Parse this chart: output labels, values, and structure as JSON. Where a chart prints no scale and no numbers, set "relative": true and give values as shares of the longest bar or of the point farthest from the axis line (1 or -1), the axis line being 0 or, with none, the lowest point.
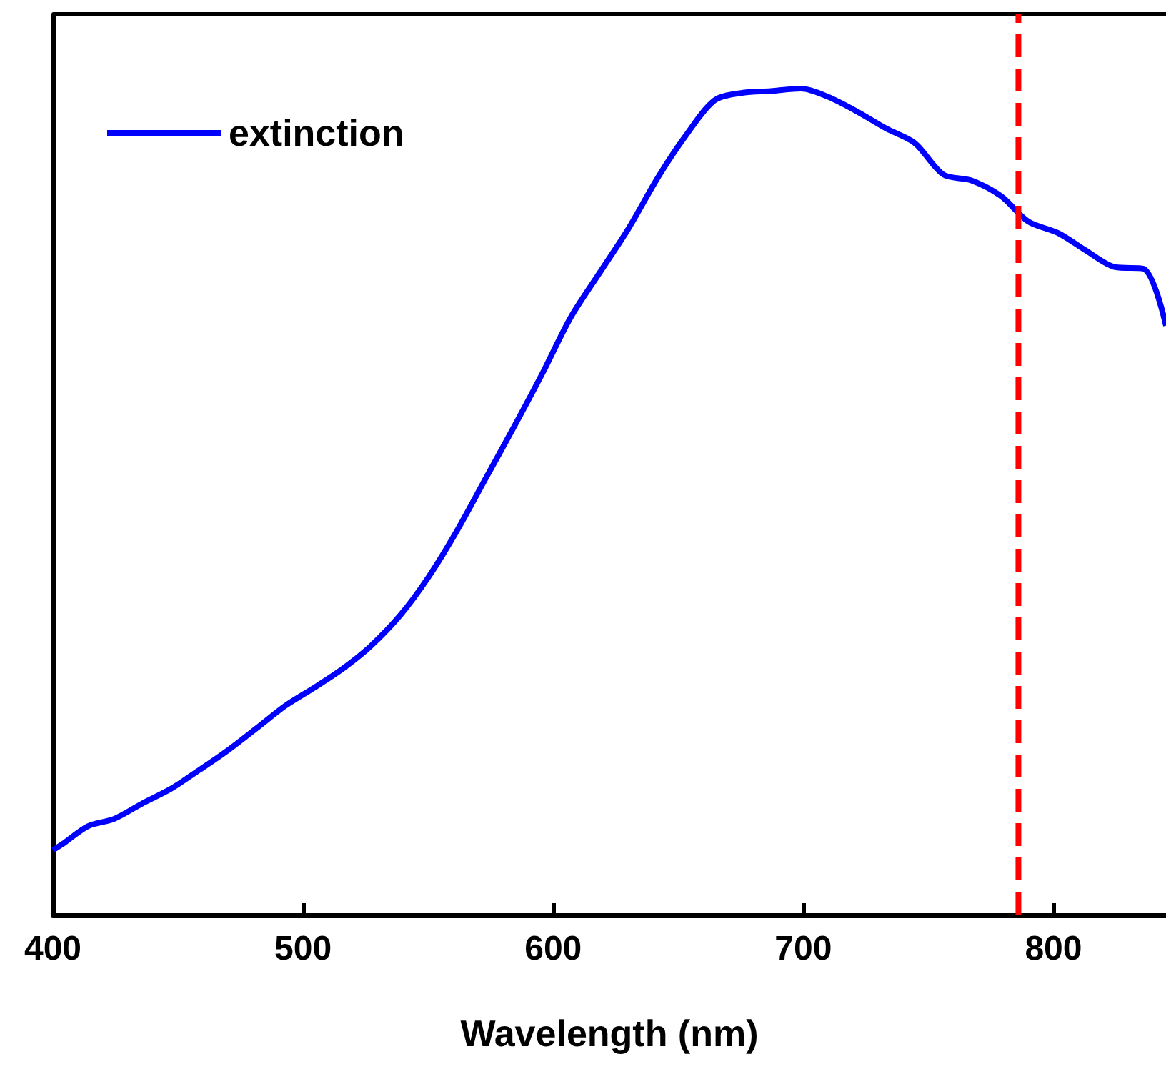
{
  "chart_data": {
    "type": "line",
    "xlabel": "Wavelength (nm)",
    "relative": true,
    "xlim": [
      400,
      845
    ],
    "xticks": [
      400,
      500,
      600,
      700,
      800
    ],
    "grid": false,
    "legend": "top left",
    "marker": "none",
    "line_style": "solid",
    "series": [
      {
        "name": "extinction",
        "color": "#0000ff",
        "x": [
          400,
          404.6,
          414,
          424.6,
          436,
          447,
          459,
          470,
          482,
          493,
          504.6,
          516,
          527,
          539,
          550,
          561,
          573,
          584.6,
          596,
          607,
          619,
          630,
          642,
          653,
          664.6,
          676,
          687,
          699,
          710,
          721.7,
          733,
          744.6,
          756,
          767,
          779,
          790,
          802,
          813,
          824.6,
          836,
          845
        ],
        "values": [
          0.078,
          0.087,
          0.107,
          0.116,
          0.135,
          0.152,
          0.176,
          0.199,
          0.227,
          0.253,
          0.275,
          0.298,
          0.325,
          0.363,
          0.408,
          0.462,
          0.528,
          0.592,
          0.657,
          0.723,
          0.779,
          0.83,
          0.893,
          0.943,
          0.986,
          0.995,
          0.997,
          1.0,
          0.99,
          0.972,
          0.952,
          0.934,
          0.896,
          0.889,
          0.87,
          0.839,
          0.825,
          0.804,
          0.784,
          0.782,
          0.713
        ]
      }
    ],
    "ref_lines": [
      {
        "axis": "x",
        "value": 786,
        "color": "#ff0000",
        "line_style": "dashed"
      }
    ]
  }
}
